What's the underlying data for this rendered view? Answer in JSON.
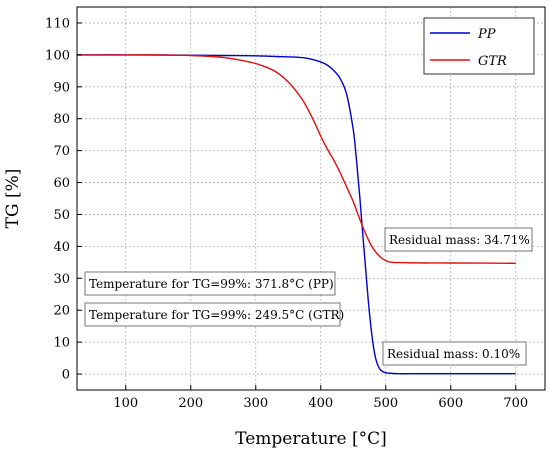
{
  "chart_data": {
    "type": "line",
    "xlabel": "Temperature [°C]",
    "ylabel": "TG [%]",
    "xlim": [
      25,
      745
    ],
    "ylim": [
      -5,
      115
    ],
    "x_ticks": [
      100,
      200,
      300,
      400,
      500,
      600,
      700
    ],
    "y_ticks": [
      0,
      10,
      20,
      30,
      40,
      50,
      60,
      70,
      80,
      90,
      100,
      110
    ],
    "grid": true,
    "legend_position": "top-right",
    "series": [
      {
        "name": "PP",
        "color": "#0000cc",
        "x": [
          25,
          100,
          200,
          250,
          300,
          330,
          360,
          380,
          400,
          410,
          420,
          430,
          440,
          450,
          455,
          460,
          465,
          470,
          475,
          480,
          485,
          490,
          495,
          500,
          510,
          520,
          550,
          600,
          650,
          700
        ],
        "y": [
          100,
          100,
          99.9,
          99.8,
          99.7,
          99.5,
          99.3,
          98.9,
          97.8,
          96.8,
          95.1,
          92.5,
          87.5,
          76.5,
          67.0,
          55.5,
          43.0,
          30.5,
          19.0,
          10.0,
          4.5,
          1.8,
          0.8,
          0.4,
          0.2,
          0.1,
          0.1,
          0.1,
          0.1,
          0.1
        ]
      },
      {
        "name": "GTR",
        "color": "#e01010",
        "x": [
          25,
          100,
          150,
          200,
          250,
          290,
          310,
          330,
          350,
          370,
          380,
          390,
          400,
          410,
          420,
          430,
          440,
          450,
          460,
          470,
          480,
          490,
          500,
          510,
          530,
          560,
          600,
          650,
          700
        ],
        "y": [
          100,
          100,
          100,
          99.8,
          99.2,
          97.8,
          96.6,
          94.8,
          91.5,
          86.5,
          83.0,
          79.0,
          74.5,
          70.5,
          67.0,
          63.0,
          58.5,
          54.0,
          48.5,
          43.5,
          39.5,
          37.0,
          35.5,
          35.0,
          34.9,
          34.8,
          34.8,
          34.75,
          34.7
        ]
      }
    ],
    "annotations": [
      "Residual mass: 34.71%",
      "Residual mass: 0.10%",
      "Temperature for TG=99%: 371.8°C (PP)",
      "Temperature for TG=99%: 249.5°C (GTR)"
    ]
  }
}
